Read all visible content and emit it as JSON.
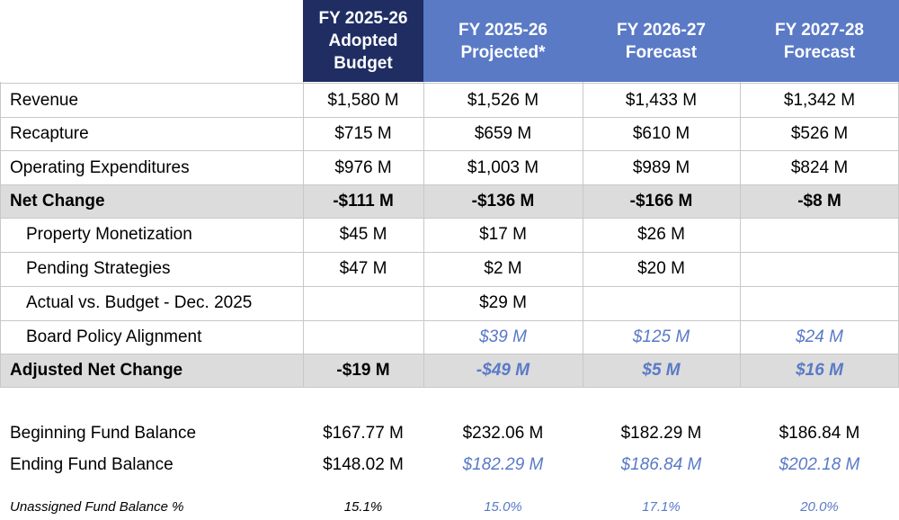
{
  "headers": [
    {
      "line1": "FY 2025-26",
      "line2": "Adopted",
      "line3": "Budget"
    },
    {
      "line1": "FY 2025-26",
      "line2": "Projected*"
    },
    {
      "line1": "FY 2026-27",
      "line2": "Forecast"
    },
    {
      "line1": "FY 2027-28",
      "line2": "Forecast"
    }
  ],
  "rows": [
    {
      "label": "Revenue",
      "values": [
        "$1,580 M",
        "$1,526 M",
        "$1,433 M",
        "$1,342 M"
      ]
    },
    {
      "label": "Recapture",
      "values": [
        "$715 M",
        "$659 M",
        "$610 M",
        "$526 M"
      ]
    },
    {
      "label": "Operating Expenditures",
      "values": [
        "$976 M",
        "$1,003 M",
        "$989 M",
        "$824 M"
      ]
    },
    {
      "label": "Net Change",
      "values": [
        "-$111 M",
        "-$136 M",
        "-$166 M",
        "-$8 M"
      ]
    },
    {
      "label": "Property Monetization",
      "values": [
        "$45 M",
        "$17 M",
        "$26 M",
        ""
      ]
    },
    {
      "label": "Pending Strategies",
      "values": [
        "$47 M",
        "$2 M",
        "$20 M",
        ""
      ]
    },
    {
      "label": "Actual vs. Budget - Dec. 2025",
      "values": [
        "",
        "$29 M",
        "",
        ""
      ]
    },
    {
      "label": "Board Policy Alignment",
      "values": [
        "",
        "$39 M",
        "$125 M",
        "$24 M"
      ]
    },
    {
      "label": "Adjusted Net Change",
      "values": [
        "-$19 M",
        "-$49 M",
        "$5 M",
        "$16 M"
      ]
    }
  ],
  "summary": [
    {
      "label": "Beginning Fund Balance",
      "values": [
        "$167.77 M",
        "$232.06 M",
        "$182.29 M",
        "$186.84 M"
      ]
    },
    {
      "label": "Ending Fund Balance",
      "values": [
        "$148.02 M",
        "$182.29 M",
        "$186.84 M",
        "$202.18 M"
      ]
    }
  ],
  "footer": {
    "label": "Unassigned Fund Balance %",
    "values": [
      "15.1%",
      "15.0%",
      "17.1%",
      "20.0%"
    ]
  },
  "colors": {
    "header_dark": "#1f2d63",
    "header_light": "#5a7ac6",
    "projection_text": "#5a7ac6",
    "highlight_row": "#dcdcdc"
  }
}
